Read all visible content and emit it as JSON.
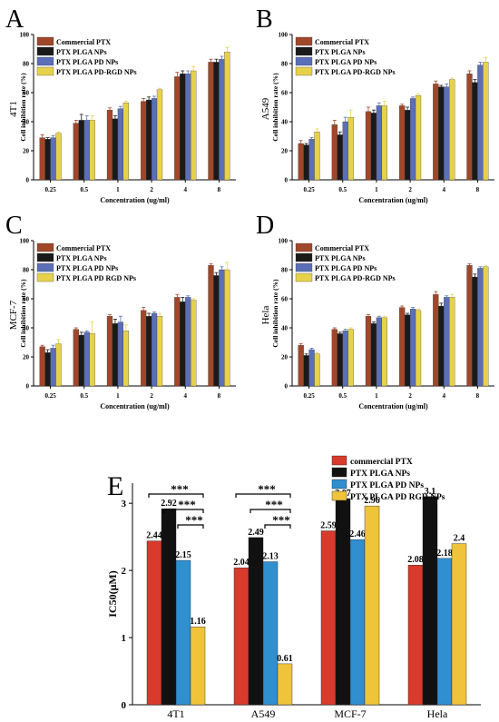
{
  "colors": {
    "panel_abcd": [
      "#a0472a",
      "#1a1a1a",
      "#5b6fb8",
      "#e6d24a"
    ],
    "panel_e": [
      "#d83a2b",
      "#111111",
      "#2f8fcf",
      "#f0c43a"
    ]
  },
  "chart_data": [
    {
      "panel": "A",
      "type": "bar",
      "side_label": "4T1",
      "ylabel": "Cell inhibition rate (%)",
      "xlabel": "Concentration (ug/ml)",
      "ylim": [
        0,
        100
      ],
      "yticks": [
        0,
        20,
        40,
        60,
        80,
        100
      ],
      "categories": [
        "0.25",
        "0.5",
        "1",
        "2",
        "4",
        "8"
      ],
      "series": [
        {
          "name": "Commercial PTX",
          "values": [
            29,
            39,
            48,
            54,
            71,
            81
          ],
          "errors": [
            2,
            2,
            1.5,
            2,
            3,
            2
          ]
        },
        {
          "name": "PTX PLGA NPs",
          "values": [
            28,
            41,
            42,
            55,
            73,
            81
          ],
          "errors": [
            1,
            4,
            2,
            2,
            2,
            2
          ]
        },
        {
          "name": "PTX PLGA PD NPs",
          "values": [
            29,
            41,
            49,
            56,
            73,
            83
          ],
          "errors": [
            1.5,
            3,
            1.5,
            1.5,
            2,
            2
          ]
        },
        {
          "name": "PTX PLGA PD-RGD NPs",
          "values": [
            32,
            41,
            53,
            62,
            75,
            88
          ],
          "errors": [
            1,
            3,
            1,
            1,
            3,
            3
          ]
        }
      ],
      "legend": "top-left"
    },
    {
      "panel": "B",
      "type": "bar",
      "side_label": "A549",
      "ylabel": "Cell inhibition rate (%)",
      "xlabel": "Concentration (ug/ml)",
      "ylim": [
        0,
        100
      ],
      "yticks": [
        0,
        20,
        40,
        60,
        80,
        100
      ],
      "categories": [
        "0.25",
        "0.5",
        "1",
        "2",
        "4",
        "8"
      ],
      "series": [
        {
          "name": "Commercial PTX",
          "values": [
            25,
            38,
            47,
            51,
            66,
            73
          ],
          "errors": [
            2,
            3,
            3,
            1,
            2,
            2
          ]
        },
        {
          "name": "PTX PLGA NPs",
          "values": [
            24,
            31,
            46,
            48,
            64,
            67
          ],
          "errors": [
            1,
            2,
            2,
            2,
            1,
            2
          ]
        },
        {
          "name": "PTX PLGA PD NPs",
          "values": [
            28,
            40,
            51,
            56,
            64,
            79
          ],
          "errors": [
            1,
            3,
            2,
            1,
            2,
            2
          ]
        },
        {
          "name": "PTX PLGA PD-RGD NPs",
          "values": [
            33,
            43,
            51,
            58,
            69,
            81
          ],
          "errors": [
            2,
            5,
            3,
            1,
            1,
            3
          ]
        }
      ],
      "legend": "top-left"
    },
    {
      "panel": "C",
      "type": "bar",
      "side_label": "MCF-7",
      "ylabel": "Cell inhibition rate (%)",
      "xlabel": "Concentration (ug/ml)",
      "ylim": [
        0,
        100
      ],
      "yticks": [
        0,
        20,
        40,
        60,
        80,
        100
      ],
      "categories": [
        "0.25",
        "0.5",
        "1",
        "2",
        "4",
        "8"
      ],
      "series": [
        {
          "name": "Commercial PTX",
          "values": [
            27,
            39,
            48,
            52,
            61,
            83
          ],
          "errors": [
            1,
            1,
            1,
            2,
            2,
            1
          ]
        },
        {
          "name": "PTX PLGA NPs",
          "values": [
            23,
            35,
            43,
            48,
            58,
            76
          ],
          "errors": [
            2,
            2,
            3,
            2,
            3,
            2
          ]
        },
        {
          "name": "PTX PLGA PD NPs",
          "values": [
            26,
            37,
            44,
            50,
            61,
            80
          ],
          "errors": [
            2,
            1,
            4,
            1,
            1,
            2
          ]
        },
        {
          "name": "PTX PLGA PD RGD NPs",
          "values": [
            29,
            36,
            38,
            48,
            59,
            80
          ],
          "errors": [
            3,
            8,
            4,
            2,
            1,
            5
          ]
        }
      ],
      "legend": "top-left"
    },
    {
      "panel": "D",
      "type": "bar",
      "side_label": "Hela",
      "ylabel": "Cell inhibition rate (%)",
      "xlabel": "Concentration (ug/ml)",
      "ylim": [
        0,
        100
      ],
      "yticks": [
        0,
        20,
        40,
        60,
        80,
        100
      ],
      "categories": [
        "0.25",
        "0.5",
        "1",
        "2",
        "4",
        "8"
      ],
      "series": [
        {
          "name": "Commercial PTX",
          "values": [
            28,
            39,
            48,
            54,
            63,
            83
          ],
          "errors": [
            1,
            1,
            1,
            1,
            2,
            1
          ]
        },
        {
          "name": "PTX PLGA NPs",
          "values": [
            21,
            36,
            43,
            49,
            55,
            75
          ],
          "errors": [
            1,
            1,
            1,
            1,
            2,
            2
          ]
        },
        {
          "name": "PTX PLGA PD NPs",
          "values": [
            25,
            38,
            47,
            53,
            61,
            81
          ],
          "errors": [
            1,
            1,
            1,
            1,
            1,
            1
          ]
        },
        {
          "name": "PTX PLGA PD-RGD NPs",
          "values": [
            22,
            39,
            47,
            52,
            61,
            82
          ],
          "errors": [
            1,
            1,
            1,
            1,
            2,
            1
          ]
        }
      ],
      "legend": "top-left"
    },
    {
      "panel": "E",
      "type": "bar",
      "ylabel": "IC50(μM)",
      "xlabel": "",
      "ylim": [
        0,
        3.3
      ],
      "yticks": [
        0,
        1,
        2,
        3
      ],
      "categories": [
        "4T1",
        "A549",
        "MCF-7",
        "Hela"
      ],
      "series": [
        {
          "name": "commercial PTX",
          "values": [
            2.44,
            2.04,
            2.59,
            2.08
          ],
          "labels": [
            "2.44",
            "2.04",
            "2.59",
            "2.08"
          ]
        },
        {
          "name": "PTX PLGA NPs",
          "values": [
            2.92,
            2.49,
            3.07,
            3.1
          ],
          "labels": [
            "2.92",
            "2.49",
            "3.07",
            "3.1"
          ]
        },
        {
          "name": "PTX PLGA PD NPs",
          "values": [
            2.15,
            2.13,
            2.46,
            2.18
          ],
          "labels": [
            "2.15",
            "2.13",
            "2.46",
            "2.18"
          ]
        },
        {
          "name": "PTX PLGA PD RGD NPs",
          "values": [
            1.16,
            0.61,
            2.96,
            2.4
          ],
          "labels": [
            "1.16",
            "0.61",
            "2.96",
            "2.4"
          ]
        }
      ],
      "significance": [
        {
          "category": "4T1",
          "from_series": 0,
          "to_series": 3,
          "label": "***"
        },
        {
          "category": "4T1",
          "from_series": 1,
          "to_series": 3,
          "label": "***"
        },
        {
          "category": "4T1",
          "from_series": 2,
          "to_series": 3,
          "label": "***"
        },
        {
          "category": "A549",
          "from_series": 0,
          "to_series": 3,
          "label": "***"
        },
        {
          "category": "A549",
          "from_series": 1,
          "to_series": 3,
          "label": "***"
        },
        {
          "category": "A549",
          "from_series": 2,
          "to_series": 3,
          "label": "***"
        }
      ],
      "legend": "top-right"
    }
  ]
}
